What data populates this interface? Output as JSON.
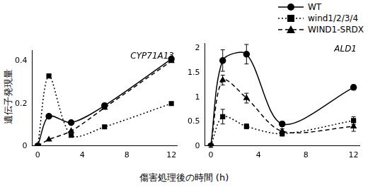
{
  "chart_data": [
    {
      "type": "line",
      "title": "CYP71A13",
      "y_label": "遺伝子発現量",
      "x_label": "傷害処理後の時間 (h)",
      "x": [
        0,
        1,
        3,
        6,
        12
      ],
      "xlim": [
        -0.5,
        12.5
      ],
      "xticks": [
        0,
        4,
        8,
        12
      ],
      "ylim": [
        0,
        0.45
      ],
      "yticks": [
        0,
        0.2,
        0.4
      ],
      "grid": false,
      "series": [
        {
          "name": "WT",
          "color": "#000000",
          "marker": "circle",
          "line_style": "solid",
          "values": [
            0,
            0.14,
            0.11,
            0.19,
            0.41
          ]
        },
        {
          "name": "wind1/2/3/4",
          "color": "#000000",
          "marker": "square",
          "line_style": "dotted",
          "values": [
            0,
            0.33,
            0.05,
            0.09,
            0.2
          ]
        },
        {
          "name": "WIND1-SRDX",
          "color": "#000000",
          "marker": "triangle",
          "line_style": "dashed",
          "values": [
            0,
            0.03,
            0.07,
            0.18,
            0.4
          ]
        }
      ]
    },
    {
      "type": "line",
      "title": "ALD1",
      "legend": "upper right",
      "x": [
        0,
        1,
        3,
        6,
        12
      ],
      "xlim": [
        -0.5,
        12.5
      ],
      "xticks": [
        0,
        4,
        8,
        12
      ],
      "ylim": [
        0,
        2.1
      ],
      "yticks": [
        0,
        0.5,
        1,
        1.5,
        2
      ],
      "grid": false,
      "series": [
        {
          "name": "WT",
          "color": "#000000",
          "marker": "circle",
          "line_style": "solid",
          "values": [
            0,
            1.75,
            1.88,
            0.45,
            1.2
          ],
          "errors": [
            0.03,
            0.22,
            0.2,
            0.05,
            0.05
          ]
        },
        {
          "name": "wind1/2/3/4",
          "color": "#000000",
          "marker": "square",
          "line_style": "dotted",
          "values": [
            0,
            0.6,
            0.4,
            0.25,
            0.52
          ],
          "errors": [
            0.02,
            0.15,
            0.05,
            0.05,
            0.08
          ]
        },
        {
          "name": "WIND1-SRDX",
          "color": "#000000",
          "marker": "triangle",
          "line_style": "dashed",
          "values": [
            0,
            1.35,
            0.98,
            0.3,
            0.4
          ],
          "errors": [
            0.02,
            0.1,
            0.1,
            0.05,
            0.1
          ]
        }
      ]
    }
  ]
}
